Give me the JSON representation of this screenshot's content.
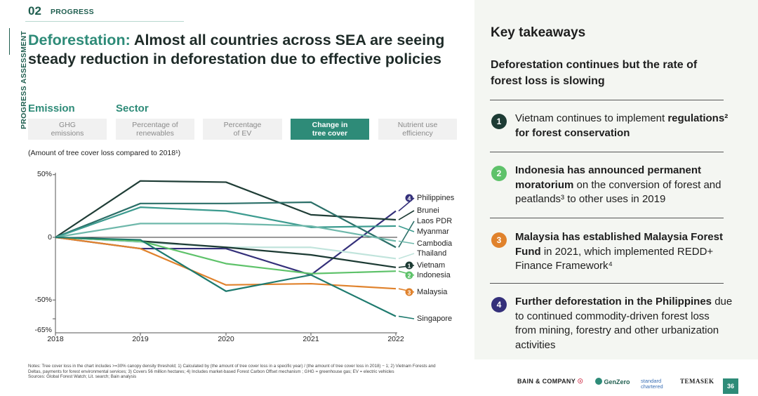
{
  "header": {
    "section_number": "02",
    "section_label": "PROGRESS",
    "side_label": "PROGRESS ASSESSMENT"
  },
  "title": {
    "highlight": "Deforestation:",
    "rest": "Almost all countries across SEA are seeing steady reduction in deforestation due to effective policies"
  },
  "groups": {
    "emission": "Emission",
    "sector": "Sector"
  },
  "tabs": [
    {
      "label_1": "GHG",
      "label_2": "emissions",
      "active": false
    },
    {
      "label_1": "Percentage of",
      "label_2": "renewables",
      "active": false
    },
    {
      "label_1": "Percentage",
      "label_2": "of EV",
      "active": false
    },
    {
      "label_1": "Change in",
      "label_2": "tree cover",
      "active": true
    },
    {
      "label_1": "Nutrient use",
      "label_2": "efficiency",
      "active": false
    }
  ],
  "chart_subtitle": "(Amount of tree cover loss compared to 2018¹)",
  "chart_data": {
    "type": "line",
    "x": [
      "2018",
      "2019",
      "2020",
      "2021",
      "2022"
    ],
    "y_ticks": [
      "50%",
      "0",
      "-50%",
      "-65%"
    ],
    "ylim": [
      -65,
      50
    ],
    "series": [
      {
        "name": "Philippines",
        "color": "#34307a",
        "marker": "4",
        "values": [
          0,
          -9,
          -9,
          -30,
          21
        ]
      },
      {
        "name": "Brunei",
        "color": "#1f3d36",
        "values": [
          0,
          45,
          44,
          18,
          14
        ]
      },
      {
        "name": "Laos PDR",
        "color": "#2b6f68",
        "values": [
          0,
          27,
          27,
          28,
          -8
        ]
      },
      {
        "name": "Myanmar",
        "color": "#3c9b8f",
        "values": [
          0,
          24,
          21,
          8,
          9
        ]
      },
      {
        "name": "Cambodia",
        "color": "#6fb8ab",
        "values": [
          0,
          11,
          11,
          9,
          -3
        ]
      },
      {
        "name": "Thailand",
        "color": "#c1e4dc",
        "values": [
          0,
          -4,
          -8,
          -8,
          -17
        ]
      },
      {
        "name": "Vietnam",
        "color": "#1c3a33",
        "marker": "1",
        "values": [
          0,
          -3,
          -8,
          -14,
          -24
        ]
      },
      {
        "name": "Indonesia",
        "color": "#5ec26a",
        "marker": "2",
        "values": [
          0,
          -3,
          -21,
          -29,
          -27
        ]
      },
      {
        "name": "Malaysia",
        "color": "#e0822c",
        "marker": "3",
        "values": [
          0,
          -9,
          -38,
          -37,
          -41
        ]
      },
      {
        "name": "Singapore",
        "color": "#1e7a6e",
        "values": [
          0,
          -2,
          -43,
          -30,
          -63
        ]
      }
    ]
  },
  "notes": {
    "line1": "Notes: Tree cover loss in the chart includes >=30% canopy density threshold; 1) Calculated by (the amount of tree cover loss in a specific year) / (the amount of tree cover loss in 2018) − 1; 2) Vietnam Forests and",
    "line2": "Deltas, payments for forest environmental services; 3) Covers 56 million hectares; 4) Includes market-based Forest Carbon Offset mechanism ; GHG = greenhouse gas; EV = electric vehicles",
    "line3": "Sources: Global Forest Watch; Lit. search; Bain analysis"
  },
  "takeaways": {
    "title": "Key takeaways",
    "subtitle": "Deforestation continues but the rate of forest loss is slowing",
    "items": [
      {
        "num": "1",
        "color": "#1d3b34",
        "pre": "Vietnam continues to implement ",
        "bold": "regulations² for forest conservation",
        "post": ""
      },
      {
        "num": "2",
        "color": "#5ec26a",
        "pre": "",
        "bold": "Indonesia has announced permanent moratorium",
        "post": " on the conversion of forest and peatlands³ to other uses in 2019"
      },
      {
        "num": "3",
        "color": "#e0822c",
        "pre": "",
        "bold": "Malaysia has established Malaysia Forest Fund",
        "post": " in 2021, which implemented REDD+ Finance Framework⁴"
      },
      {
        "num": "4",
        "color": "#34307a",
        "pre": "",
        "bold": "Further deforestation in the Philippines",
        "post": " due to continued commodity-driven forest loss from mining, forestry and other urbanization activities"
      }
    ]
  },
  "footer": {
    "bain": "BAIN & COMPANY",
    "genzero": "GenZero",
    "standard_chartered": "standard chartered",
    "temasek": "TEMASEK",
    "page": "36"
  }
}
